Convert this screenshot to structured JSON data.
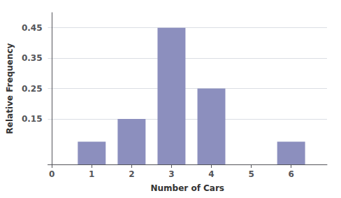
{
  "chart_data": {
    "type": "bar",
    "x": [
      1,
      2,
      3,
      4,
      6
    ],
    "values": [
      0.075,
      0.15,
      0.45,
      0.25,
      0.075
    ],
    "color": "#8c8fbe",
    "xlabel": "Number of Cars",
    "ylabel": "Relative Frequency",
    "xlim": [
      -0.1,
      6.9
    ],
    "xticks": [
      0,
      1,
      2,
      3,
      4,
      5,
      6
    ],
    "ylim": [
      0,
      0.5
    ],
    "yticks": [
      0.15,
      0.25,
      0.35,
      0.45
    ],
    "grid": true
  }
}
